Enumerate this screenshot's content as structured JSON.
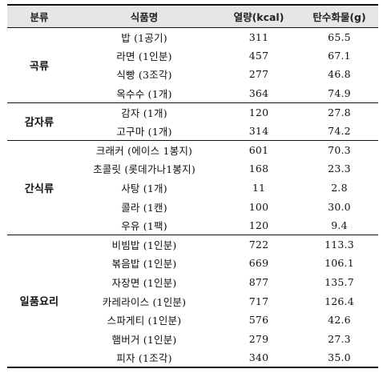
{
  "table": {
    "headers": [
      "분류",
      "식품명",
      "열량(kcal)",
      "탄수화물(g)"
    ],
    "groups": [
      {
        "category": "곡류",
        "rows": [
          {
            "food": "밥 (1공기)",
            "kcal": "311",
            "carb": "65.5"
          },
          {
            "food": "라면 (1인분)",
            "kcal": "457",
            "carb": "67.1"
          },
          {
            "food": "식빵 (3조각)",
            "kcal": "277",
            "carb": "46.8"
          },
          {
            "food": "옥수수 (1개)",
            "kcal": "364",
            "carb": "74.9"
          }
        ]
      },
      {
        "category": "감자류",
        "rows": [
          {
            "food": "감자 (1개)",
            "kcal": "120",
            "carb": "27.8"
          },
          {
            "food": "고구마 (1개)",
            "kcal": "314",
            "carb": "74.2"
          }
        ]
      },
      {
        "category": "간식류",
        "rows": [
          {
            "food": "크래커 (에이스 1봉지)",
            "kcal": "601",
            "carb": "70.3"
          },
          {
            "food": "초콜릿 (롯데가나1봉지)",
            "kcal": "168",
            "carb": "23.3"
          },
          {
            "food": "사탕 (1개)",
            "kcal": "11",
            "carb": "2.8"
          },
          {
            "food": "콜라 (1캔)",
            "kcal": "100",
            "carb": "30.0"
          },
          {
            "food": "우유 (1팩)",
            "kcal": "120",
            "carb": "9.4"
          }
        ]
      },
      {
        "category": "일품요리",
        "rows": [
          {
            "food": "비빔밥 (1인분)",
            "kcal": "722",
            "carb": "113.3"
          },
          {
            "food": "볶음밥 (1인분)",
            "kcal": "669",
            "carb": "106.1"
          },
          {
            "food": "자장면 (1인분)",
            "kcal": "877",
            "carb": "135.7"
          },
          {
            "food": "카레라이스 (1인분)",
            "kcal": "717",
            "carb": "126.4"
          },
          {
            "food": "스파게티 (1인분)",
            "kcal": "576",
            "carb": "42.6"
          },
          {
            "food": "햄버거 (1인분)",
            "kcal": "279",
            "carb": "27.3"
          },
          {
            "food": "피자 (1조각)",
            "kcal": "340",
            "carb": "35.0"
          }
        ]
      }
    ]
  }
}
